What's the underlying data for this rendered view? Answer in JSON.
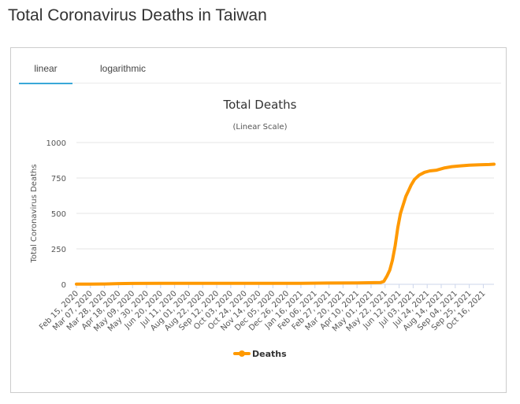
{
  "page": {
    "title": "Total Coronavirus Deaths in Taiwan"
  },
  "tabs": [
    {
      "label": "linear",
      "active": true
    },
    {
      "label": "logarithmic",
      "active": false
    }
  ],
  "colors": {
    "series": "#FF9900",
    "active_tab": "#3aa8d8"
  },
  "chart_data": {
    "type": "line",
    "title": "Total Deaths",
    "subtitle": "(Linear Scale)",
    "ylabel": "Total Coronavirus Deaths",
    "xlabel": "",
    "ylim": [
      0,
      1000
    ],
    "yticks": [
      0,
      250,
      500,
      750,
      1000
    ],
    "grid": true,
    "legend_position": "bottom-center",
    "x_start": "Feb 15, 2020",
    "x_end": "Nov 01, 2021",
    "xticks": [
      "Feb 15, 2020",
      "Mar 07, 2020",
      "Mar 28, 2020",
      "Apr 18, 2020",
      "May 09, 2020",
      "May 30, 2020",
      "Jun 20, 2020",
      "Jul 11, 2020",
      "Aug 01, 2020",
      "Aug 22, 2020",
      "Sep 12, 2020",
      "Oct 03, 2020",
      "Oct 24, 2020",
      "Nov 14, 2020",
      "Dec 05, 2020",
      "Dec 26, 2020",
      "Jan 16, 2021",
      "Feb 06, 2021",
      "Feb 27, 2021",
      "Mar 20, 2021",
      "Apr 10, 2021",
      "May 01, 2021",
      "May 22, 2021",
      "Jun 12, 2021",
      "Jul 03, 2021",
      "Jul 24, 2021",
      "Aug 14, 2021",
      "Sep 04, 2021",
      "Sep 25, 2021",
      "Oct 16, 2021"
    ],
    "series": [
      {
        "name": "Deaths",
        "x": [
          "Feb 15, 2020",
          "Mar 07, 2020",
          "Mar 28, 2020",
          "Apr 18, 2020",
          "May 09, 2020",
          "Jun 20, 2020",
          "Aug 01, 2020",
          "Sep 12, 2020",
          "Oct 24, 2020",
          "Dec 05, 2020",
          "Jan 16, 2021",
          "Feb 27, 2021",
          "Apr 10, 2021",
          "May 15, 2021",
          "May 20, 2021",
          "May 25, 2021",
          "May 29, 2021",
          "Jun 02, 2021",
          "Jun 06, 2021",
          "Jun 10, 2021",
          "Jun 14, 2021",
          "Jun 18, 2021",
          "Jun 22, 2021",
          "Jun 26, 2021",
          "Jun 30, 2021",
          "Jul 05, 2021",
          "Jul 12, 2021",
          "Jul 20, 2021",
          "Jul 28, 2021",
          "Aug 07, 2021",
          "Aug 18, 2021",
          "Aug 30, 2021",
          "Sep 10, 2021",
          "Sep 25, 2021",
          "Oct 10, 2021",
          "Oct 25, 2021",
          "Nov 01, 2021"
        ],
        "y": [
          1,
          1,
          2,
          5,
          6,
          7,
          7,
          7,
          7,
          7,
          7,
          9,
          10,
          12,
          20,
          60,
          100,
          170,
          270,
          400,
          500,
          560,
          620,
          660,
          700,
          740,
          770,
          790,
          800,
          805,
          820,
          830,
          835,
          840,
          843,
          845,
          847
        ]
      }
    ]
  }
}
